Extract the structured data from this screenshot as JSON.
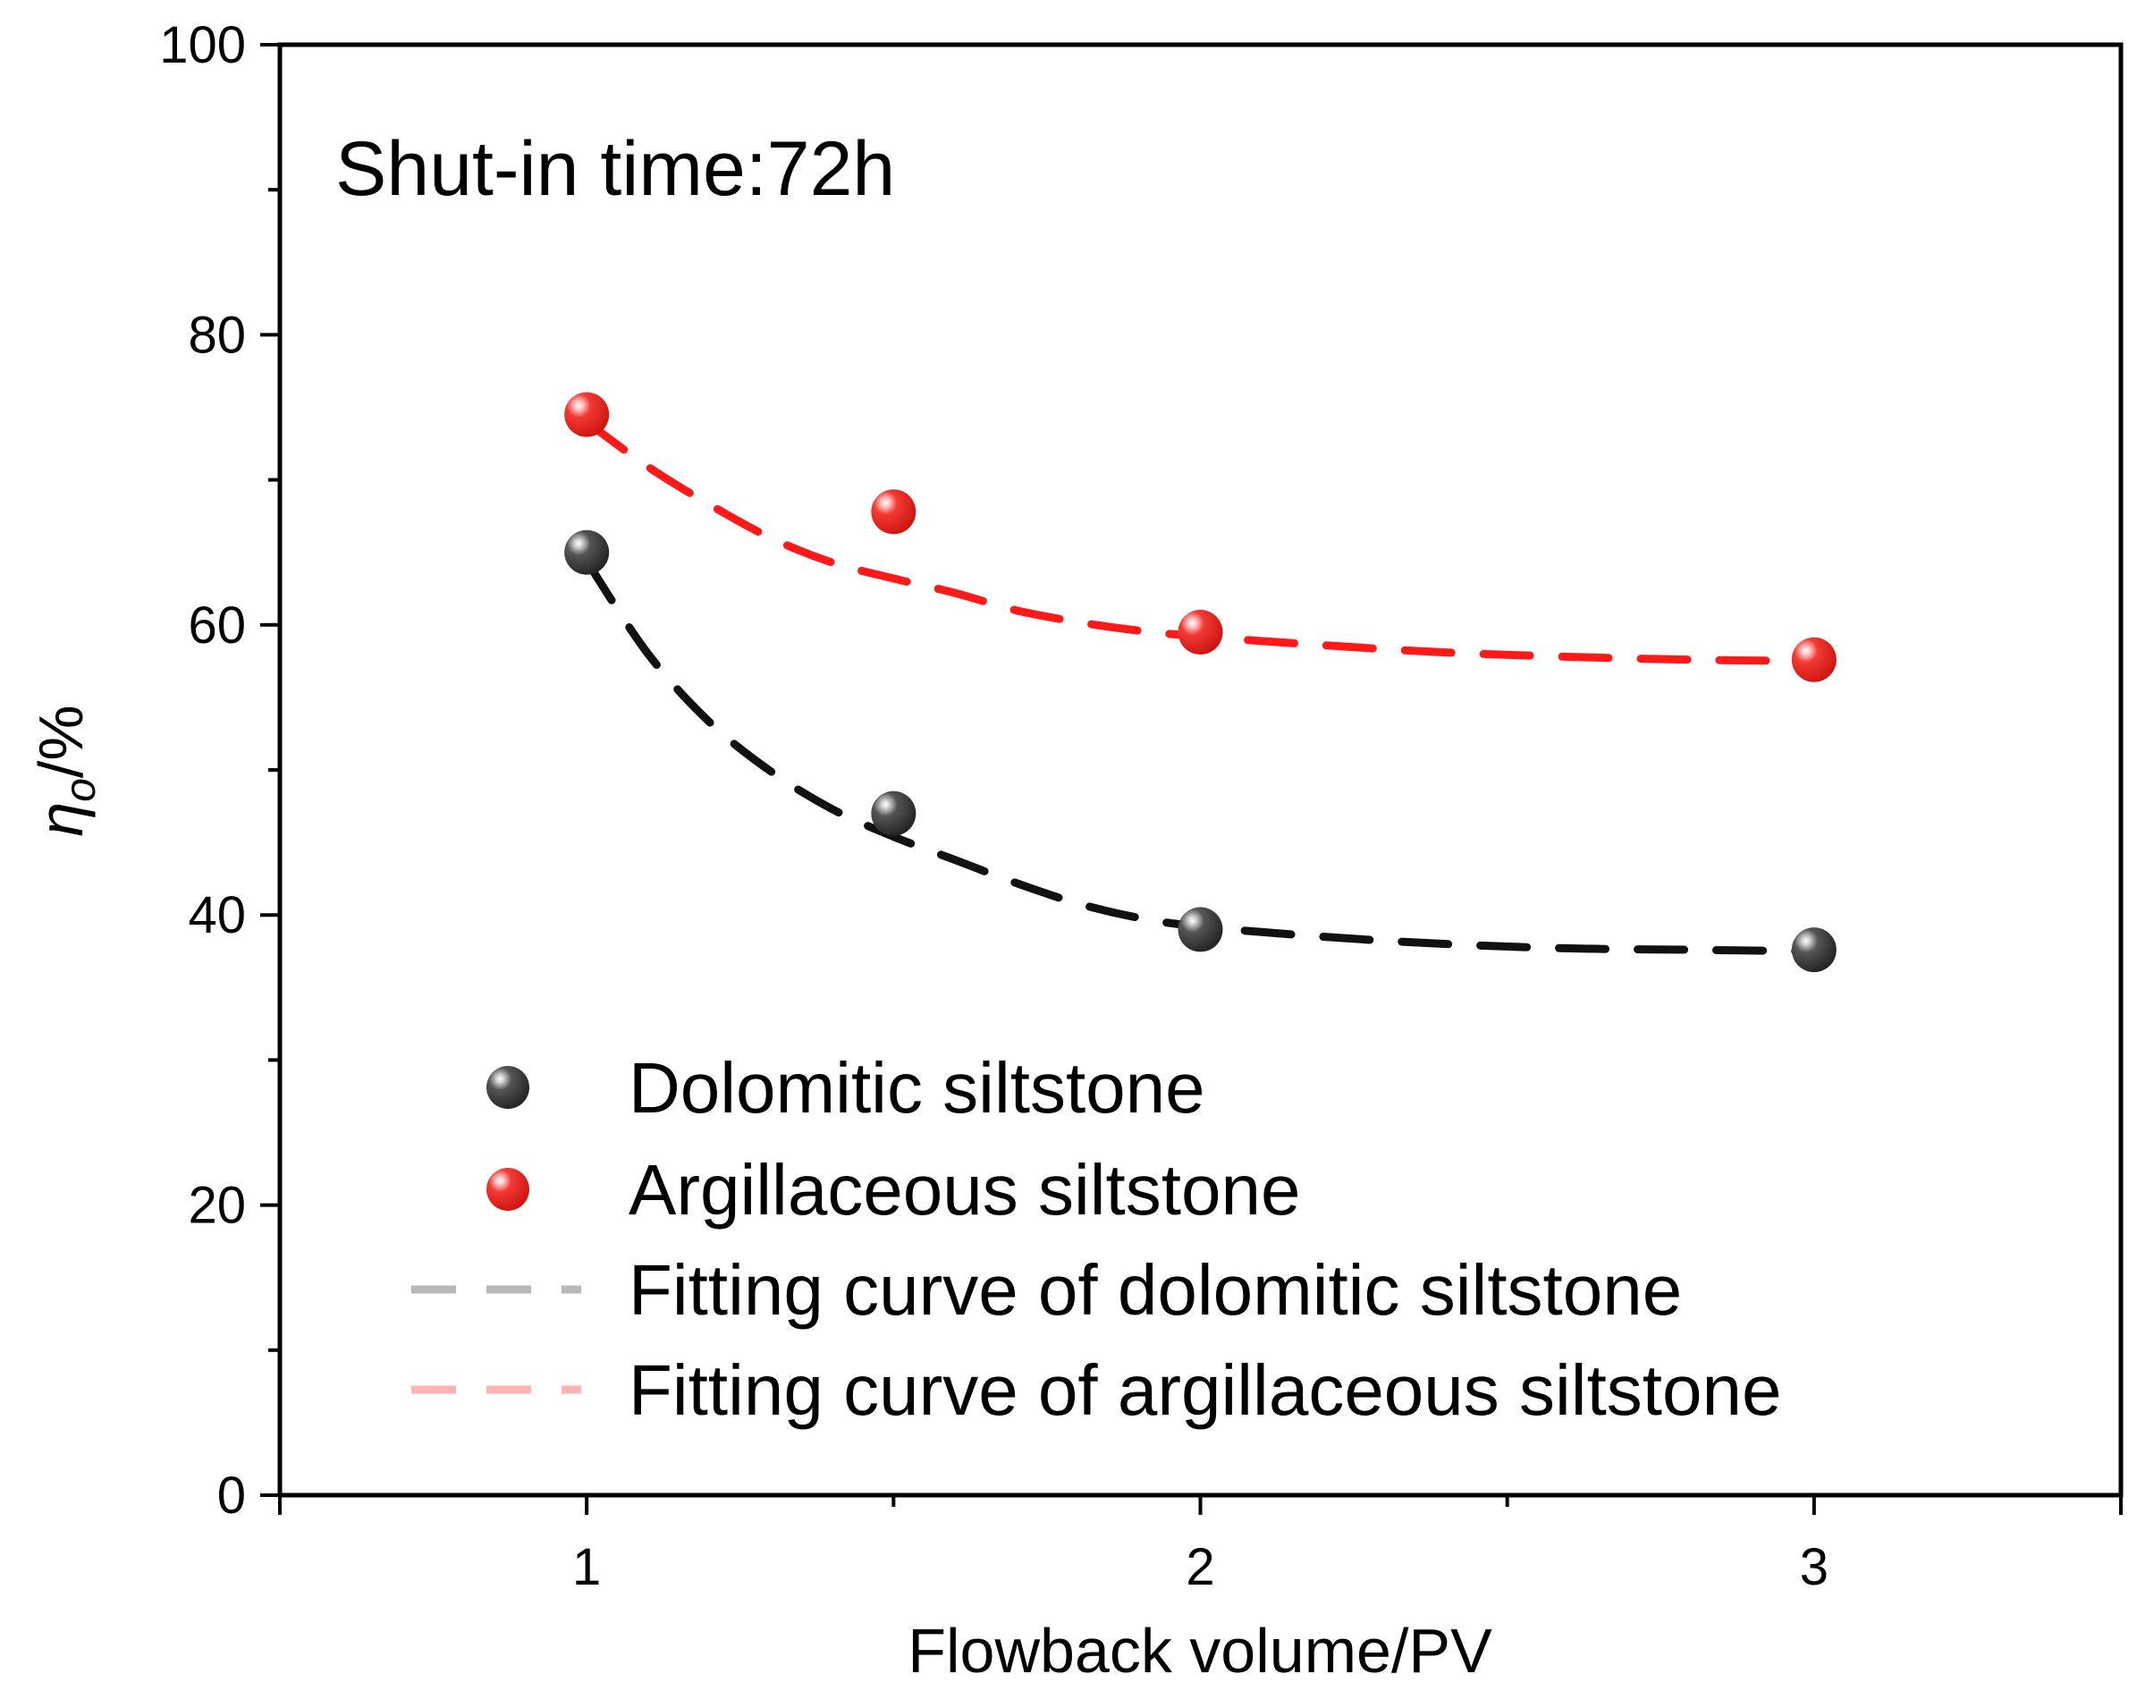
{
  "chart_data": {
    "type": "scatter",
    "title": "",
    "annotation": "Shut-in time:72h",
    "xlabel": "Flowback volume/PV",
    "ylabel_main": "η",
    "ylabel_sub": "o",
    "ylabel_suffix": "/%",
    "xlim": [
      0.5,
      3.5
    ],
    "ylim": [
      0,
      100
    ],
    "x_ticks": [
      1,
      2,
      3
    ],
    "x_tick_labels": [
      "1",
      "2",
      "3"
    ],
    "x_minor_ticks": [
      1.5,
      2.5
    ],
    "y_ticks": [
      0,
      20,
      40,
      60,
      80,
      100
    ],
    "y_tick_labels": [
      "0",
      "20",
      "40",
      "60",
      "80",
      "100"
    ],
    "y_minor_ticks": [
      10,
      30,
      50,
      70,
      90
    ],
    "grid": false,
    "legend_position": "bottom-left",
    "series": [
      {
        "name": "Dolomitic siltstone",
        "kind": "points",
        "color": "#3a3a3a",
        "x": [
          1,
          1.5,
          2,
          3
        ],
        "y": [
          65,
          47,
          39,
          37.6
        ]
      },
      {
        "name": "Argillaceous siltstone",
        "kind": "points",
        "color": "#e8221f",
        "x": [
          1,
          1.5,
          2,
          3
        ],
        "y": [
          74.5,
          67.8,
          59.5,
          57.6
        ]
      },
      {
        "name": "Fitting curve of dolomitic siltstone",
        "kind": "line",
        "color": "#111111",
        "legend_color": "#b8b8b8",
        "x": [
          1,
          1.1,
          1.2,
          1.3,
          1.4,
          1.5,
          1.6,
          1.7,
          1.8,
          1.9,
          2.0,
          2.2,
          2.4,
          2.6,
          2.8,
          3.0
        ],
        "y": [
          64.4,
          58.0,
          53.3,
          49.9,
          47.3,
          45.4,
          43.8,
          42.2,
          40.8,
          39.8,
          39.2,
          38.5,
          38.0,
          37.7,
          37.6,
          37.5
        ]
      },
      {
        "name": "Fitting curve of argillaceous siltstone",
        "kind": "line",
        "color": "#ff1a1a",
        "legend_color": "#ffb3b3",
        "x": [
          1,
          1.1,
          1.2,
          1.3,
          1.4,
          1.5,
          1.6,
          1.7,
          1.8,
          1.9,
          2.0,
          2.2,
          2.4,
          2.6,
          2.8,
          3.0
        ],
        "y": [
          74.0,
          70.9,
          68.3,
          66.0,
          64.3,
          63.2,
          62.2,
          61.0,
          60.2,
          59.6,
          59.2,
          58.6,
          58.1,
          57.8,
          57.6,
          57.5
        ]
      }
    ]
  }
}
